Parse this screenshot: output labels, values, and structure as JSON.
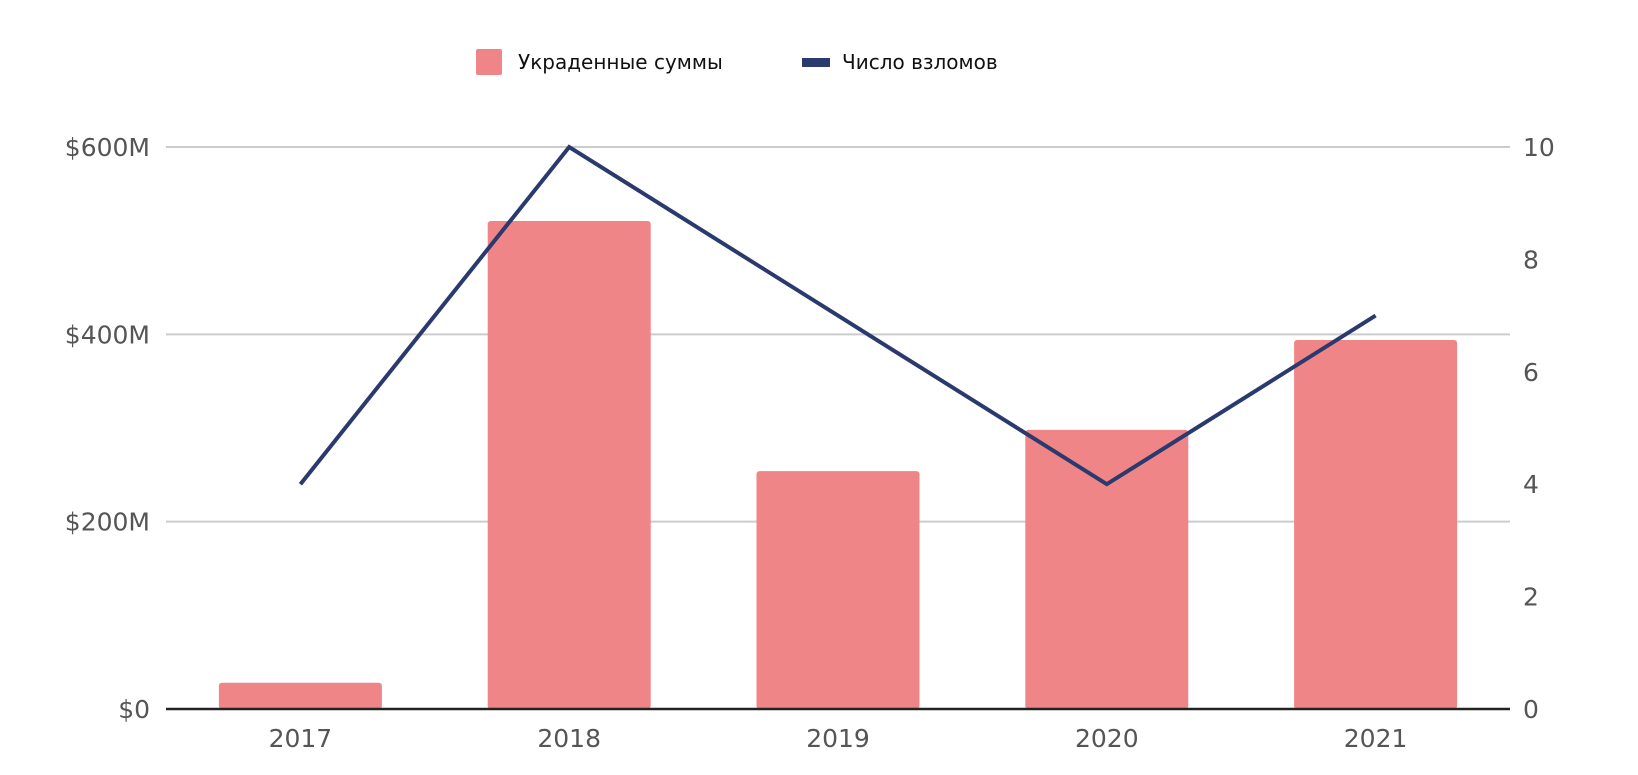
{
  "chart_data": {
    "type": "bar",
    "categories": [
      "2017",
      "2018",
      "2019",
      "2020",
      "2021"
    ],
    "series": [
      {
        "name": "Украденные суммы",
        "type": "bar",
        "axis": "left",
        "values": [
          28,
          521,
          254,
          298,
          394
        ]
      },
      {
        "name": "Число взломов",
        "type": "line",
        "axis": "right",
        "values": [
          4,
          10,
          7,
          4,
          7
        ]
      }
    ],
    "title": "",
    "xlabel": "",
    "ylabel": "",
    "ylim": [
      0,
      600
    ],
    "y_ticks": [
      "$0",
      "$200M",
      "$400M",
      "$600M"
    ],
    "y_tick_values": [
      0,
      200,
      400,
      600
    ],
    "y2lim": [
      0,
      10
    ],
    "y2_ticks": [
      "0",
      "2",
      "4",
      "6",
      "8",
      "10"
    ],
    "y2_tick_values": [
      0,
      2,
      4,
      6,
      8,
      10
    ],
    "grid": true,
    "legend_position": "top-center",
    "colors": {
      "bar": "#f08588",
      "line": "#2b3a6e",
      "grid": "#cccccc",
      "axis": "#222222",
      "tick_text": "#555555"
    }
  }
}
